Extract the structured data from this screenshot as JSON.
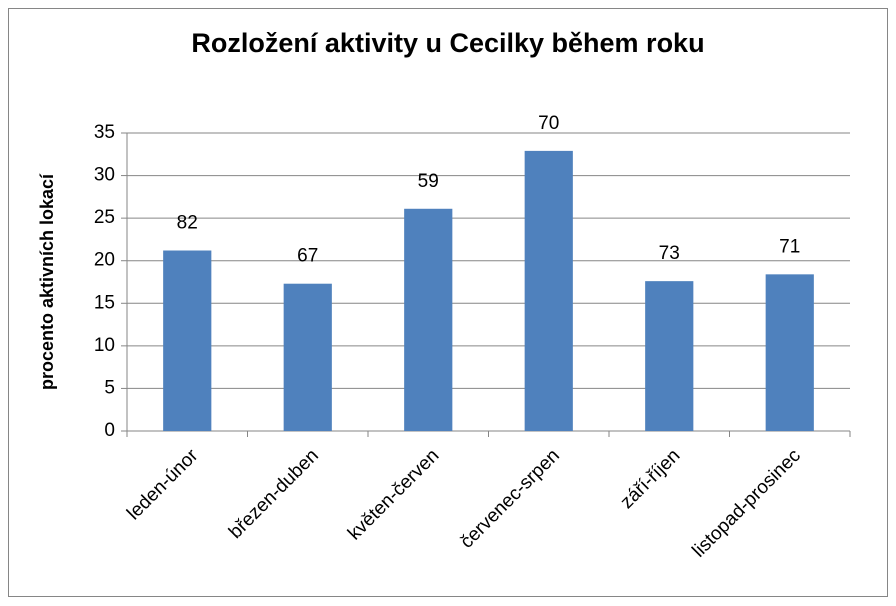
{
  "chart_data": {
    "type": "bar",
    "title": "Rozložení aktivity u Cecilky během roku",
    "y_label": "procento aktivních lokací",
    "categories": [
      "leden-únor",
      "březen-duben",
      "květen-červen",
      "červenec-srpen",
      "září-říjen",
      "listopad-prosinec"
    ],
    "values": [
      21.2,
      17.3,
      26.1,
      32.9,
      17.6,
      18.4
    ],
    "annotations": [
      82,
      67,
      59,
      70,
      73,
      71
    ],
    "color": "#4f81bd",
    "ylim": [
      0,
      35
    ],
    "yticks": [
      0,
      5,
      10,
      15,
      20,
      25,
      30,
      35
    ],
    "grid": true
  }
}
